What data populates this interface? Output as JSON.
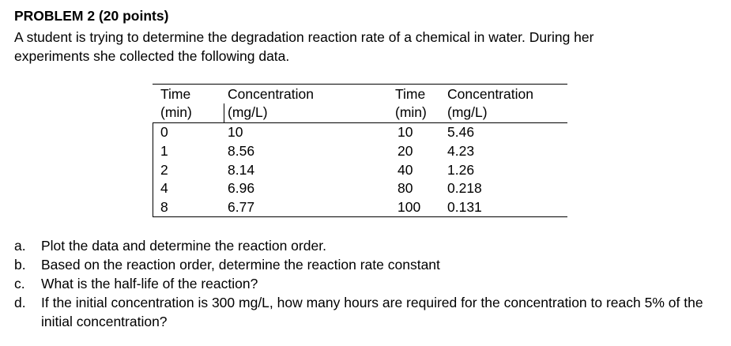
{
  "title": "PROBLEM 2 (20 points)",
  "intro": [
    "A student is trying to determine the degradation reaction rate of a chemical in water.  During her",
    "experiments she collected the following data."
  ],
  "table": {
    "header": [
      [
        "Time",
        "(min)"
      ],
      [
        "Concentration",
        "(mg/L)"
      ],
      [
        "Time",
        "(min)"
      ],
      [
        "Concentration",
        "(mg/L)"
      ]
    ],
    "rows": [
      [
        "0",
        "10",
        "10",
        "5.46"
      ],
      [
        "1",
        "8.56",
        "20",
        "4.23"
      ],
      [
        "2",
        "8.14",
        "40",
        "1.26"
      ],
      [
        "4",
        "6.96",
        "80",
        "0.218"
      ],
      [
        "8",
        "6.77",
        "100",
        "0.131"
      ]
    ]
  },
  "questions": [
    {
      "label": "a.",
      "text": "Plot the data and determine the reaction order."
    },
    {
      "label": "b.",
      "text": "Based on the reaction order, determine the reaction rate constant"
    },
    {
      "label": "c.",
      "text": "What is the half-life of the reaction?"
    },
    {
      "label": "d.",
      "text": "If the initial concentration is 300 mg/L, how many hours are required for the concentration to reach 5% of the initial concentration?"
    }
  ]
}
